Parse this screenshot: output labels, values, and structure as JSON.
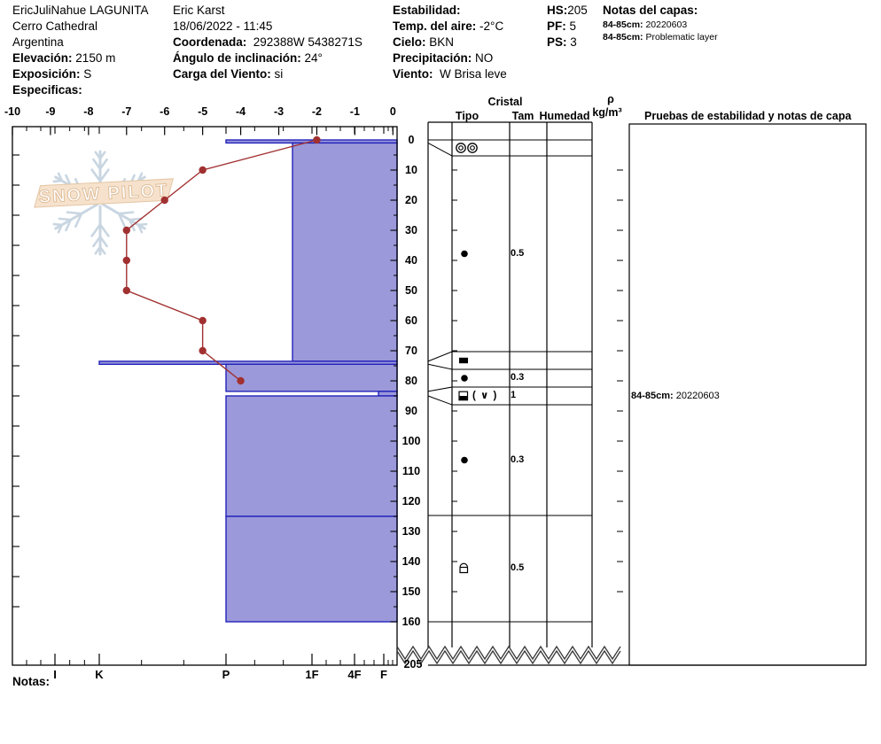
{
  "header": {
    "pit_name": "EricJuliNahue LAGUNITA",
    "location": "Cerro Cathedral",
    "region": "Argentina",
    "elevation_label": "Elevación:",
    "elevation_value": "2150 m",
    "aspect_label": "Exposición:",
    "aspect_value": "S",
    "specifics_label": "Especificas:",
    "observer": "Eric Karst",
    "datetime": "18/06/2022 - 11:45",
    "coordinate_label": "Coordenada:",
    "coordinate_value": "292388W 5438271S",
    "slope_angle_label": "Ángulo de inclinación:",
    "slope_angle_value": "24°",
    "wind_loading_label": "Carga del Viento:",
    "wind_loading_value": "si",
    "stability_label": "Estabilidad:",
    "air_temp_label": "Temp. del aire:",
    "air_temp_value": "-2°C",
    "sky_label": "Cielo:",
    "sky_value": "BKN",
    "precip_label": "Precipitación:",
    "precip_value": "NO",
    "wind_label": "Viento:",
    "wind_value": "W Brisa leve",
    "hs_label": "HS:",
    "hs_value": "205",
    "pf_label": "PF:",
    "pf_value": "5",
    "ps_label": "PS:",
    "ps_value": "3",
    "layer_notes_header": "Notas del capas:",
    "layer_notes": [
      {
        "range": "84-85cm:",
        "text": "20220603"
      },
      {
        "range": "84-85cm:",
        "text": "Problematic layer"
      }
    ]
  },
  "logo": {
    "text": "SNOW PILOT"
  },
  "table": {
    "cristal_header": "Cristal",
    "col_tipo": "Tipo",
    "col_tam": "Tam",
    "col_humedad": "Humedad",
    "col_rho": "ρ",
    "col_rho_units": "kg/m³",
    "col_pruebas": "Pruebas de estabilidad y notas de capa",
    "layer_note": {
      "label": "84-85cm:",
      "value": "20220603"
    }
  },
  "notas_label": "Notas:",
  "chart_data": {
    "type": "snow-profile",
    "title": "SnowPilot snow pit profile",
    "temp_axis": {
      "unit": "°C",
      "ticks": [
        -10,
        -9,
        -8,
        -7,
        -6,
        -5,
        -4,
        -3,
        -2,
        -1,
        0
      ]
    },
    "depth_axis": {
      "unit": "cm",
      "ticks": [
        0,
        10,
        20,
        30,
        40,
        50,
        60,
        70,
        80,
        90,
        100,
        110,
        120,
        130,
        140,
        150,
        160
      ],
      "total_depth_label": "205"
    },
    "hardness_axis": {
      "ticks": [
        "I",
        "K",
        "P",
        "1F",
        "4F",
        "F"
      ]
    },
    "temperature_profile": [
      {
        "depth_cm": 0,
        "temp_c": -2
      },
      {
        "depth_cm": 10,
        "temp_c": -5
      },
      {
        "depth_cm": 20,
        "temp_c": -6
      },
      {
        "depth_cm": 30,
        "temp_c": -7
      },
      {
        "depth_cm": 40,
        "temp_c": -7
      },
      {
        "depth_cm": 50,
        "temp_c": -7
      },
      {
        "depth_cm": 60,
        "temp_c": -5
      },
      {
        "depth_cm": 70,
        "temp_c": -5
      },
      {
        "depth_cm": 80,
        "temp_c": -4
      }
    ],
    "layers": [
      {
        "top_cm": 0,
        "bottom_cm": 1,
        "hardness": "P",
        "crystal_type": "MFcr",
        "crystal_glyph": "◎◎",
        "size_mm": ""
      },
      {
        "top_cm": 1,
        "bottom_cm": 73.5,
        "hardness": "1F+",
        "crystal_type": "RG",
        "crystal_glyph": "●",
        "size_mm": "0.5"
      },
      {
        "top_cm": 73.5,
        "bottom_cm": 74.5,
        "hardness": "K",
        "crystal_type": "IF",
        "crystal_glyph": "■",
        "size_mm": ""
      },
      {
        "top_cm": 74.5,
        "bottom_cm": 83.5,
        "hardness": "P",
        "crystal_type": "RG",
        "crystal_glyph": "●",
        "size_mm": "0.3"
      },
      {
        "top_cm": 83.5,
        "bottom_cm": 85,
        "hardness": "F+",
        "crystal_type": "FCsf",
        "crystal_glyph": "◧",
        "secondary": "( ∨ )",
        "size_mm": "1"
      },
      {
        "top_cm": 85,
        "bottom_cm": 125,
        "hardness": "P",
        "crystal_type": "RG",
        "crystal_glyph": "●",
        "size_mm": "0.3"
      },
      {
        "top_cm": 125,
        "bottom_cm": 160,
        "hardness": "P",
        "crystal_type": "MFpc",
        "crystal_glyph": "⌒",
        "size_mm": "0.5"
      }
    ],
    "colors": {
      "bar_fill": "#9b99d9",
      "bar_border": "#2323bb",
      "temp_line": "#a13131",
      "logo_banner": "#f6e2cc",
      "logo_flake": "#c9d6e1"
    }
  }
}
